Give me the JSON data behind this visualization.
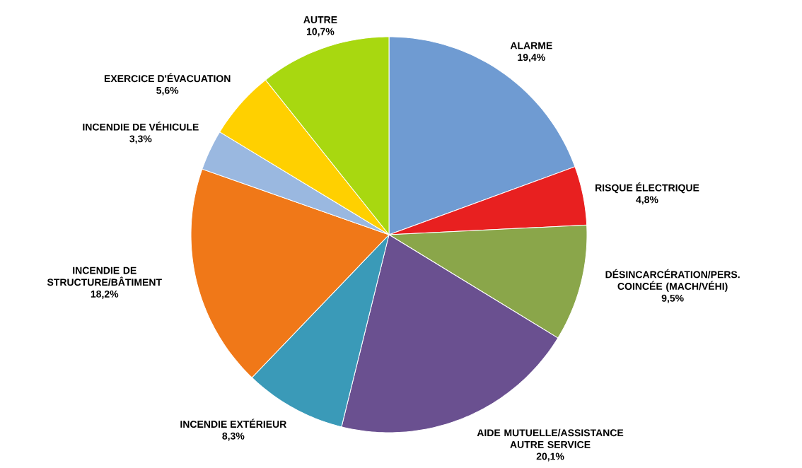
{
  "chart_data": {
    "type": "pie",
    "categories": [
      "ALARME",
      "RISQUE ÉLECTRIQUE",
      "DÉSINCARCÉRATION/PERS. COINCÉE (MACH/VÉHI)",
      "AIDE MUTUELLE/ASSISTANCE AUTRE SERVICE",
      "INCENDIE EXTÉRIEUR",
      "INCENDIE DE STRUCTURE/BÂTIMENT",
      "INCENDIE DE VÉHICULE",
      "EXERCICE D'ÉVACUATION",
      "AUTRE"
    ],
    "values": [
      19.4,
      4.8,
      9.5,
      20.1,
      8.3,
      18.2,
      3.3,
      5.6,
      10.7
    ],
    "value_labels": [
      "19,4%",
      "4,8%",
      "9,5%",
      "20,1%",
      "8,3%",
      "18,2%",
      "3,3%",
      "5,6%",
      "10,7%"
    ],
    "colors": [
      "#6f9bd2",
      "#e82020",
      "#8aa64a",
      "#6a5090",
      "#3a9ab8",
      "#f07818",
      "#9ab8e0",
      "#ffd000",
      "#a8d810"
    ]
  }
}
